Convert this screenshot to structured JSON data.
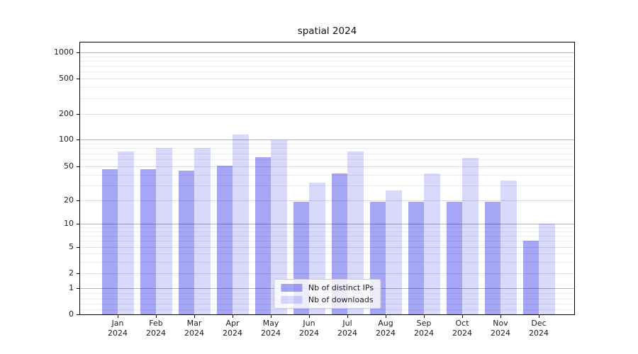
{
  "title": "spatial 2024",
  "chart_data": {
    "type": "bar",
    "title": "spatial 2024",
    "categories": [
      "Jan",
      "Feb",
      "Mar",
      "Apr",
      "May",
      "Jun",
      "Jul",
      "Aug",
      "Sep",
      "Oct",
      "Nov",
      "Dec"
    ],
    "category_year": "2024",
    "series": [
      {
        "name": "Nb of distinct IPs",
        "color": "rgba(0,0,230,0.35)",
        "values": [
          46,
          46,
          45,
          51,
          63,
          19,
          41,
          19,
          19,
          19,
          19,
          6
        ]
      },
      {
        "name": "Nb of downloads",
        "color": "rgba(0,0,230,0.15)",
        "values": [
          73,
          81,
          81,
          114,
          98,
          32,
          74,
          26,
          41,
          62,
          34,
          10
        ]
      }
    ],
    "y_axis": {
      "scale": "symlog",
      "tick_labels": [
        0,
        1,
        2,
        5,
        10,
        20,
        50,
        100,
        200,
        500,
        1000
      ]
    },
    "x_axis": {
      "tick_label_year": "2024"
    },
    "legend": {
      "position": "lower-center"
    },
    "grid": true,
    "colors": {
      "major_grid": "#b2b2b2",
      "labeled_grid": "#dddddd",
      "minor_grid": "#ececec",
      "axis": "#000000",
      "text": "#1c1c1c"
    }
  }
}
